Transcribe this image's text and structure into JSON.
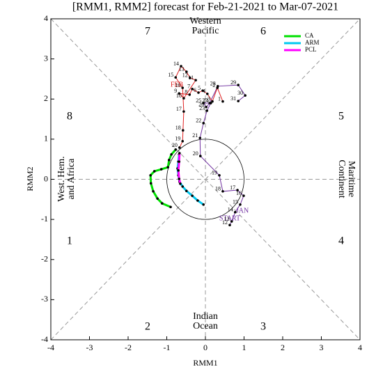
{
  "chart_data": {
    "type": "trajectory",
    "title": "[RMM1, RMM2] forecast for Feb-21-2021 to Mar-07-2021",
    "x_label": "RMM1",
    "y_label": "RMM2",
    "xlim": [
      -4,
      4
    ],
    "ylim": [
      -4,
      4
    ],
    "xticks": [
      -4,
      -3,
      -2,
      -1,
      0,
      1,
      2,
      3,
      4
    ],
    "yticks": [
      -4,
      -3,
      -2,
      -1,
      0,
      1,
      2,
      3,
      4
    ],
    "phases": [
      1,
      2,
      3,
      4,
      5,
      6,
      7,
      8
    ],
    "regions": [
      [
        "Western",
        "Pacific"
      ],
      [
        "Maritime",
        "Continent"
      ],
      [
        "Indian",
        "Ocean"
      ],
      [
        "West. Hem.",
        "and Africa"
      ]
    ],
    "annotations": [
      {
        "text": "START",
        "color": "#7030a0"
      },
      {
        "text": "JAN",
        "color": "#7030a0"
      },
      {
        "text": "FEB",
        "color": "#e02020"
      }
    ],
    "observed": [
      {
        "color": "#7030a0",
        "days": [
          12,
          13,
          14,
          15,
          16,
          17,
          18,
          19,
          20,
          21,
          22,
          23,
          24,
          25,
          26,
          27,
          28,
          29,
          30,
          31
        ],
        "x": [
          0.63,
          0.68,
          0.77,
          0.9,
          0.99,
          0.83,
          0.45,
          0.36,
          -0.13,
          -0.14,
          -0.05,
          0.04,
          0.14,
          -0.05,
          0.02,
          0.11,
          0.32,
          0.85,
          1.03,
          0.85
        ],
        "y": [
          -1.14,
          -1.05,
          -0.82,
          -0.63,
          -0.41,
          -0.27,
          -0.3,
          0.1,
          0.58,
          1.03,
          1.4,
          1.71,
          1.9,
          1.9,
          1.8,
          1.9,
          2.32,
          2.35,
          2.09,
          1.95
        ]
      },
      {
        "color": "#e02020",
        "days": [
          1,
          2,
          3,
          4,
          5,
          6,
          7,
          8,
          9,
          10,
          11,
          12,
          13,
          14,
          15,
          16,
          17,
          18,
          19,
          20
        ],
        "x": [
          0.45,
          0.31,
          0.18,
          0.05,
          -0.07,
          -0.18,
          -0.34,
          -0.41,
          -0.68,
          -0.56,
          -0.25,
          -0.4,
          -0.49,
          -0.63,
          -0.77,
          -0.59,
          -0.56,
          -0.58,
          -0.59,
          -0.67
        ],
        "y": [
          1.94,
          2.28,
          1.94,
          2.13,
          2.21,
          2.16,
          2.25,
          2.11,
          2.14,
          2.02,
          2.47,
          2.53,
          2.68,
          2.82,
          2.54,
          2.28,
          1.69,
          1.22,
          0.95,
          0.79
        ]
      }
    ],
    "series": [
      {
        "name": "CA",
        "color": "#00e000",
        "x": [
          -0.77,
          -0.88,
          -0.94,
          -0.97,
          -1.14,
          -1.32,
          -1.42,
          -1.41,
          -1.35,
          -1.24,
          -1.12,
          -0.9
        ],
        "y": [
          0.74,
          0.62,
          0.48,
          0.3,
          0.25,
          0.2,
          0.1,
          -0.1,
          -0.3,
          -0.48,
          -0.6,
          -0.69
        ]
      },
      {
        "name": "ARM",
        "color": "#00c8f0",
        "x": [
          -0.68,
          -0.7,
          -0.72,
          -0.7,
          -0.67,
          -0.59,
          -0.49,
          -0.34,
          -0.2,
          -0.05
        ],
        "y": [
          0.62,
          0.44,
          0.27,
          0.1,
          -0.06,
          -0.18,
          -0.29,
          -0.41,
          -0.53,
          -0.63
        ]
      },
      {
        "name": "PCL",
        "color": "#ff00ff",
        "x": [
          -0.67,
          -0.68,
          -0.7,
          -0.68,
          -0.65
        ],
        "y": [
          0.65,
          0.44,
          0.22,
          0.01,
          -0.11
        ]
      }
    ]
  }
}
